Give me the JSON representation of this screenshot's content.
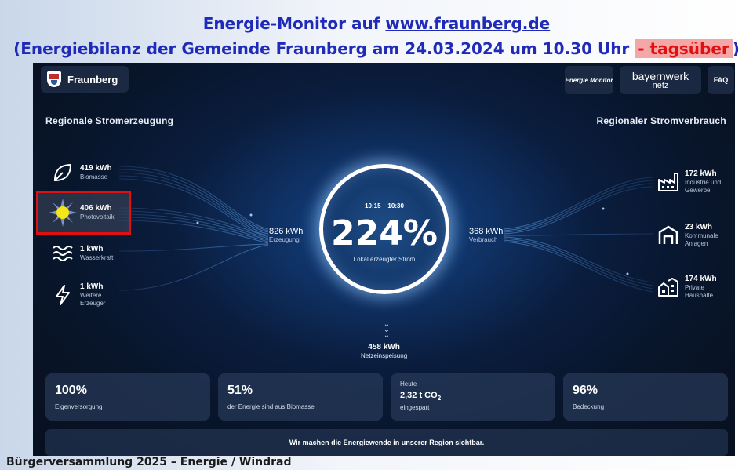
{
  "slide": {
    "title_line1_prefix": "Energie-Monitor auf ",
    "title_line1_url": "www.fraunberg.de",
    "title_line2_prefix": "(Energiebilanz der Gemeinde Fraunberg am 24.03.2024 um 10.30 Uhr ",
    "title_line2_highlight": "- tagsüber",
    "title_line2_suffix": ")",
    "footer": "Bürgerversammlung 2025 – Energie / Windrad",
    "highlight_color": "#e01010",
    "title_color": "#1f2bb8"
  },
  "header": {
    "brand": "Fraunberg",
    "energie_monitor": "Energie Monitor",
    "bayernwerk_line1": "bayernwerk",
    "bayernwerk_line2": "netz",
    "faq": "FAQ"
  },
  "generation": {
    "title": "Regionale Stromerzeugung",
    "sources": [
      {
        "value": "419 kWh",
        "label": "Biomasse",
        "icon": "leaf-icon"
      },
      {
        "value": "406 kWh",
        "label": "Photovoltaik",
        "icon": "sun-icon"
      },
      {
        "value": "1 kWh",
        "label": "Wasserkraft",
        "icon": "water-icon"
      },
      {
        "value": "1 kWh",
        "label_line1": "Weitere",
        "label_line2": "Erzeuger",
        "icon": "bolt-icon"
      }
    ],
    "total_value": "826 kWh",
    "total_label": "Erzeugung"
  },
  "center": {
    "time": "10:15 – 10:30",
    "percent": "224%",
    "label": "Lokal erzeugter Strom"
  },
  "consumption": {
    "title": "Regionaler Stromverbrauch",
    "total_value": "368 kWh",
    "total_label": "Verbrauch",
    "sinks": [
      {
        "value": "172 kWh",
        "label_line1": "Industrie und",
        "label_line2": "Gewerbe",
        "icon": "factory-icon"
      },
      {
        "value": "23 kWh",
        "label_line1": "Kommunale",
        "label_line2": "Anlagen",
        "icon": "building-icon"
      },
      {
        "value": "174 kWh",
        "label_line1": "Private",
        "label_line2": "Haushalte",
        "icon": "houses-icon"
      }
    ]
  },
  "grid_feed": {
    "value": "458 kWh",
    "label": "Netzeinspeisung"
  },
  "stats": [
    {
      "big": "100%",
      "small": "Eigenversorgung"
    },
    {
      "big": "51%",
      "small": "der Energie sind aus Biomasse"
    },
    {
      "pre": "Heute",
      "value": "2,32 t CO",
      "sub2": "2",
      "small": "eingespart"
    },
    {
      "big": "96%",
      "small": "Bedeckung"
    }
  ],
  "banner": "Wir machen die Energiewende in unserer Region sichtbar."
}
